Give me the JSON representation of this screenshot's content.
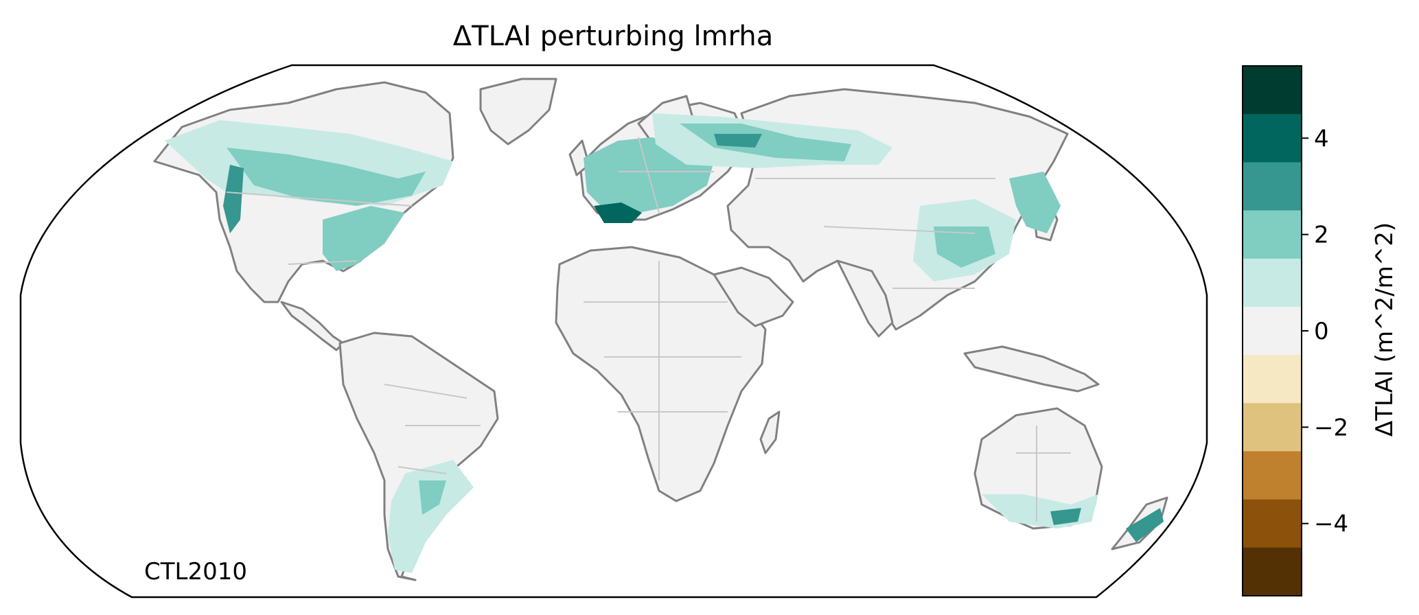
{
  "map": {
    "title": "ΔTLAI perturbing lmrha",
    "label": "CTL2010",
    "colors": {
      "land": "#f2f2f2",
      "coast": "#808080",
      "borders": "#c8c8c8",
      "frame": "#000000",
      "green_light": "#c7eae5",
      "green_mid": "#80cdc1",
      "green_dark": "#35978f",
      "green_darker": "#01665e",
      "green_darkest": "#003c30"
    }
  },
  "colorbar": {
    "label": "ΔTLAI (m^2/m^2)",
    "ticks": [
      "4",
      "2",
      "0",
      "−2",
      "−4"
    ],
    "levels": [
      5,
      4,
      3,
      2,
      1,
      0,
      -1,
      -2,
      -3,
      -4,
      -5
    ],
    "colors": [
      "#003c30",
      "#01665e",
      "#35978f",
      "#80cdc1",
      "#c7eae5",
      "#f2f2f2",
      "#f6e8c3",
      "#dfc27d",
      "#bf812d",
      "#8c510a",
      "#543005"
    ]
  }
}
